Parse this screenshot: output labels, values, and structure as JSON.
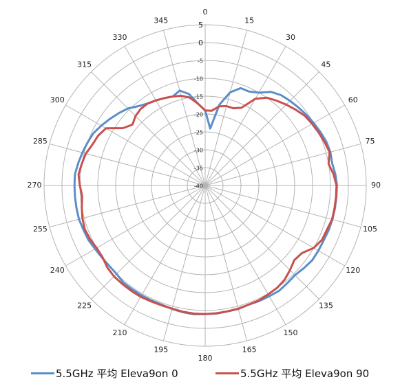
{
  "chart_data": {
    "type": "line",
    "subtype": "polar",
    "angle_direction": "clockwise",
    "angle_zero": "top",
    "angle_ticks": [
      0,
      15,
      30,
      45,
      60,
      75,
      90,
      105,
      120,
      135,
      150,
      165,
      180,
      195,
      210,
      225,
      240,
      255,
      270,
      285,
      300,
      315,
      330,
      345
    ],
    "radial_ticks": [
      5,
      0,
      -5,
      -10,
      -15,
      -20,
      -25,
      -30,
      -35,
      -40
    ],
    "rlim": [
      -40,
      5
    ],
    "grid": true,
    "legend_position": "bottom",
    "series": [
      {
        "name": "5.5GHz 平均 Eleva9on 0",
        "color": "#5b8ec9",
        "points": [
          [
            0,
            -19
          ],
          [
            5,
            -24
          ],
          [
            10,
            -17
          ],
          [
            15,
            -13
          ],
          [
            20,
            -11
          ],
          [
            25,
            -11
          ],
          [
            30,
            -10
          ],
          [
            35,
            -8
          ],
          [
            40,
            -7
          ],
          [
            45,
            -6.5
          ],
          [
            50,
            -6
          ],
          [
            55,
            -5.5
          ],
          [
            60,
            -5
          ],
          [
            65,
            -4.5
          ],
          [
            70,
            -4
          ],
          [
            75,
            -3.8
          ],
          [
            80,
            -4
          ],
          [
            85,
            -3.5
          ],
          [
            90,
            -3.2
          ],
          [
            95,
            -3.2
          ],
          [
            100,
            -3.2
          ],
          [
            105,
            -3.2
          ],
          [
            110,
            -3.3
          ],
          [
            115,
            -3.5
          ],
          [
            120,
            -3.5
          ],
          [
            125,
            -3.5
          ],
          [
            130,
            -4
          ],
          [
            135,
            -4.5
          ],
          [
            140,
            -4.3
          ],
          [
            145,
            -4
          ],
          [
            150,
            -4.2
          ],
          [
            155,
            -4.3
          ],
          [
            160,
            -4.5
          ],
          [
            165,
            -4.2
          ],
          [
            170,
            -4.2
          ],
          [
            175,
            -4
          ],
          [
            180,
            -4
          ],
          [
            185,
            -3.8
          ],
          [
            190,
            -4
          ],
          [
            195,
            -4.2
          ],
          [
            200,
            -4.5
          ],
          [
            205,
            -4.5
          ],
          [
            210,
            -4.5
          ],
          [
            215,
            -4.5
          ],
          [
            220,
            -4.5
          ],
          [
            225,
            -5
          ],
          [
            230,
            -5
          ],
          [
            235,
            -4.8
          ],
          [
            240,
            -4.5
          ],
          [
            245,
            -4
          ],
          [
            250,
            -3.8
          ],
          [
            255,
            -3.5
          ],
          [
            260,
            -3.5
          ],
          [
            265,
            -3.5
          ],
          [
            270,
            -3.5
          ],
          [
            275,
            -3.5
          ],
          [
            280,
            -4
          ],
          [
            285,
            -4.5
          ],
          [
            290,
            -5
          ],
          [
            295,
            -5.5
          ],
          [
            300,
            -6.5
          ],
          [
            305,
            -7.5
          ],
          [
            310,
            -8.5
          ],
          [
            315,
            -9.5
          ],
          [
            320,
            -11
          ],
          [
            325,
            -12
          ],
          [
            330,
            -12.5
          ],
          [
            335,
            -13
          ],
          [
            340,
            -13.5
          ],
          [
            345,
            -12.5
          ],
          [
            350,
            -14
          ],
          [
            355,
            -17
          ],
          [
            360,
            -19
          ]
        ]
      },
      {
        "name": "5.5GHz 平均 Eleva9on 90",
        "color": "#c9504c",
        "points": [
          [
            0,
            -19
          ],
          [
            5,
            -19
          ],
          [
            10,
            -17.5
          ],
          [
            15,
            -17
          ],
          [
            20,
            -17
          ],
          [
            25,
            -16
          ],
          [
            30,
            -12
          ],
          [
            35,
            -10
          ],
          [
            40,
            -9
          ],
          [
            45,
            -8
          ],
          [
            50,
            -7
          ],
          [
            55,
            -6
          ],
          [
            60,
            -5.5
          ],
          [
            65,
            -5
          ],
          [
            70,
            -4.5
          ],
          [
            75,
            -4
          ],
          [
            80,
            -5
          ],
          [
            85,
            -4
          ],
          [
            90,
            -3.3
          ],
          [
            95,
            -3.3
          ],
          [
            100,
            -3.3
          ],
          [
            105,
            -3.3
          ],
          [
            110,
            -3.8
          ],
          [
            115,
            -4
          ],
          [
            120,
            -5
          ],
          [
            125,
            -7
          ],
          [
            130,
            -7.5
          ],
          [
            135,
            -6.5
          ],
          [
            140,
            -5.5
          ],
          [
            145,
            -5
          ],
          [
            150,
            -4.8
          ],
          [
            155,
            -4.5
          ],
          [
            160,
            -4.5
          ],
          [
            165,
            -4.3
          ],
          [
            170,
            -4.2
          ],
          [
            175,
            -4.1
          ],
          [
            180,
            -4
          ],
          [
            185,
            -4
          ],
          [
            190,
            -4.1
          ],
          [
            195,
            -4.3
          ],
          [
            200,
            -4.3
          ],
          [
            205,
            -4.2
          ],
          [
            210,
            -4
          ],
          [
            215,
            -4
          ],
          [
            220,
            -4
          ],
          [
            225,
            -4
          ],
          [
            230,
            -4.3
          ],
          [
            235,
            -5
          ],
          [
            240,
            -5
          ],
          [
            245,
            -4.5
          ],
          [
            250,
            -4.2
          ],
          [
            255,
            -4.5
          ],
          [
            260,
            -5
          ],
          [
            265,
            -5.5
          ],
          [
            270,
            -5
          ],
          [
            275,
            -4.5
          ],
          [
            280,
            -5
          ],
          [
            285,
            -5.5
          ],
          [
            290,
            -6.5
          ],
          [
            295,
            -7
          ],
          [
            300,
            -8
          ],
          [
            305,
            -12
          ],
          [
            310,
            -13.5
          ],
          [
            315,
            -12.5
          ],
          [
            320,
            -12
          ],
          [
            325,
            -12
          ],
          [
            330,
            -12.5
          ],
          [
            335,
            -13
          ],
          [
            340,
            -13.5
          ],
          [
            345,
            -14
          ],
          [
            350,
            -15
          ],
          [
            355,
            -17
          ],
          [
            360,
            -19
          ]
        ]
      }
    ]
  }
}
